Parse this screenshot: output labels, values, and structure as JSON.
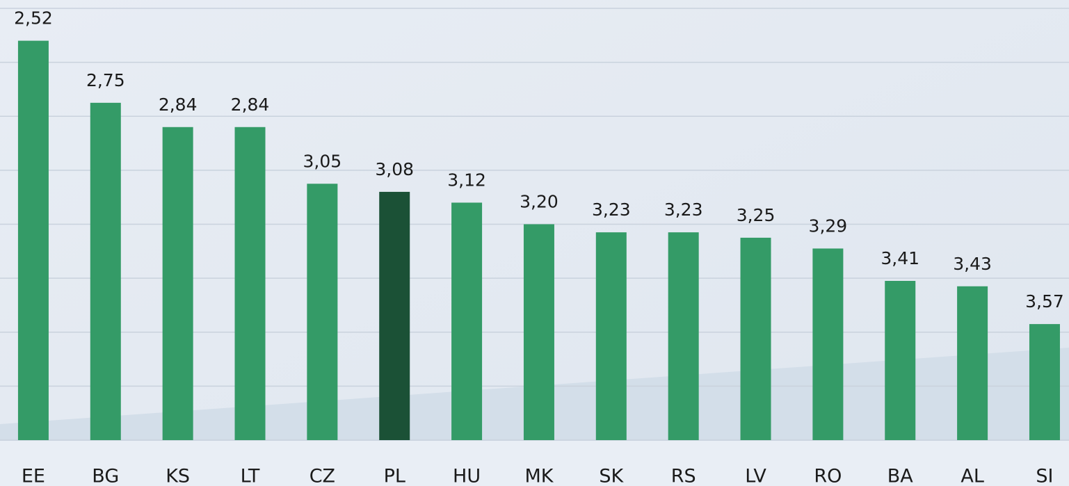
{
  "chart_data": {
    "type": "bar",
    "categories": [
      "EE",
      "BG",
      "KS",
      "LT",
      "CZ",
      "PL",
      "HU",
      "MK",
      "SK",
      "RS",
      "LV",
      "RO",
      "BA",
      "AL",
      "SI"
    ],
    "values": [
      2.52,
      2.75,
      2.84,
      2.84,
      3.05,
      3.08,
      3.12,
      3.2,
      3.23,
      3.23,
      3.25,
      3.29,
      3.41,
      3.43,
      3.57
    ],
    "value_labels": [
      "2,52",
      "2,75",
      "2,84",
      "2,84",
      "3,05",
      "3,08",
      "3,12",
      "3,20",
      "3,23",
      "3,23",
      "3,25",
      "3,29",
      "3,41",
      "3,43",
      "3,57"
    ],
    "colors": [
      "#349b67",
      "#349b67",
      "#349b67",
      "#349b67",
      "#349b67",
      "#1b5136",
      "#349b67",
      "#349b67",
      "#349b67",
      "#349b67",
      "#349b67",
      "#349b67",
      "#349b67",
      "#349b67",
      "#349b67"
    ],
    "ylim": [
      4,
      2.4
    ],
    "yticks": [
      4,
      3.8,
      3.6,
      3.4,
      3.2,
      3,
      2.8,
      2.6,
      2.4
    ],
    "grid": true
  }
}
